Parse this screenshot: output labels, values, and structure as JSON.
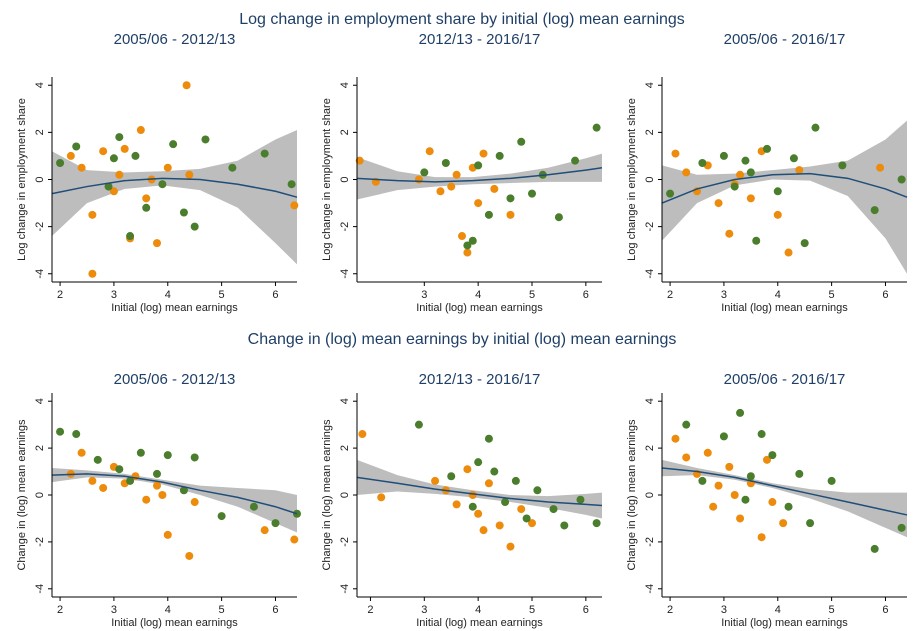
{
  "group_titles": [
    "Log change in employment share by initial (log) mean earnings",
    "Change in (log) mean earnings by initial (log) mean earnings"
  ],
  "chart_data": [
    {
      "type": "scatter",
      "title": "2005/06 - 2012/13",
      "xlabel": "Initial (log) mean earnings",
      "ylabel": "Log change in employment share",
      "xlim": [
        1.85,
        6.4
      ],
      "ylim": [
        -4.35,
        4.35
      ],
      "xticks": [
        2,
        3,
        4,
        5,
        6
      ],
      "yticks": [
        -4,
        -2,
        0,
        2,
        4
      ],
      "series": [
        {
          "color": "#ed8b0c",
          "x": [
            2.2,
            2.4,
            2.6,
            2.8,
            3.0,
            3.1,
            3.3,
            3.5,
            3.6,
            3.8,
            4.0,
            4.35,
            4.4,
            6.35,
            2.6,
            3.2,
            3.7
          ],
          "values": [
            1.0,
            0.5,
            -4.0,
            1.2,
            -0.5,
            0.2,
            -2.5,
            2.1,
            -0.8,
            -2.7,
            0.5,
            4.0,
            0.2,
            -1.1,
            -1.5,
            1.3,
            0.0
          ]
        },
        {
          "color": "#4a7d2c",
          "x": [
            2.0,
            2.3,
            2.9,
            3.1,
            3.3,
            3.4,
            3.6,
            3.9,
            4.1,
            4.3,
            4.7,
            5.2,
            5.8,
            6.3,
            3.0,
            4.5
          ],
          "values": [
            0.7,
            1.4,
            -0.3,
            1.8,
            -2.4,
            1.0,
            -1.2,
            -0.2,
            1.5,
            -1.4,
            1.7,
            0.5,
            1.1,
            -0.2,
            0.9,
            -2.0
          ]
        }
      ],
      "fit": {
        "color": "#1f4e79",
        "band_color": "#bdbdbd",
        "x": [
          1.85,
          2.5,
          3.2,
          3.9,
          4.6,
          5.3,
          6.0,
          6.4
        ],
        "values": [
          -0.6,
          -0.3,
          -0.05,
          0.05,
          0.0,
          -0.2,
          -0.5,
          -0.75
        ],
        "lower": [
          -2.4,
          -1.0,
          -0.4,
          -0.25,
          -0.45,
          -1.2,
          -2.7,
          -3.6
        ],
        "upper": [
          1.2,
          0.4,
          0.3,
          0.35,
          0.45,
          0.8,
          1.7,
          2.1
        ]
      }
    },
    {
      "type": "scatter",
      "title": "2012/13 - 2016/17",
      "xlabel": "Initial (log) mean earnings",
      "ylabel": "Log change in employment share",
      "xlim": [
        1.75,
        6.3
      ],
      "ylim": [
        -4.35,
        4.35
      ],
      "xticks": [
        3,
        4,
        5,
        6
      ],
      "yticks": [
        -4,
        -2,
        0,
        2,
        4
      ],
      "series": [
        {
          "color": "#ed8b0c",
          "x": [
            1.8,
            2.1,
            2.9,
            3.1,
            3.3,
            3.5,
            3.7,
            3.8,
            3.9,
            4.0,
            4.1,
            4.3,
            4.6,
            3.6
          ],
          "values": [
            0.8,
            -0.1,
            0.0,
            1.2,
            -0.5,
            -0.3,
            -2.4,
            -3.1,
            0.5,
            -1.0,
            1.1,
            -0.4,
            -1.5,
            0.2
          ]
        },
        {
          "color": "#4a7d2c",
          "x": [
            3.0,
            3.4,
            3.8,
            4.0,
            4.2,
            4.4,
            4.6,
            4.8,
            5.0,
            5.2,
            5.5,
            5.8,
            6.2,
            3.9
          ],
          "values": [
            0.3,
            0.7,
            -2.8,
            0.6,
            -1.5,
            1.0,
            -0.8,
            1.6,
            -0.6,
            0.2,
            -1.6,
            0.8,
            2.2,
            -2.6
          ]
        }
      ],
      "fit": {
        "color": "#1f4e79",
        "band_color": "#bdbdbd",
        "x": [
          1.75,
          2.5,
          3.2,
          3.9,
          4.6,
          5.3,
          6.0,
          6.3
        ],
        "values": [
          0.05,
          -0.05,
          -0.1,
          -0.05,
          0.05,
          0.2,
          0.4,
          0.5
        ],
        "lower": [
          -0.85,
          -0.45,
          -0.3,
          -0.2,
          -0.15,
          -0.1,
          -0.1,
          -0.1
        ],
        "upper": [
          0.95,
          0.35,
          0.1,
          0.1,
          0.25,
          0.5,
          0.9,
          1.1
        ]
      }
    },
    {
      "type": "scatter",
      "title": "2005/06 - 2016/17",
      "xlabel": "Initial (log) mean earnings",
      "ylabel": "Log change in employment share",
      "xlim": [
        1.85,
        6.4
      ],
      "ylim": [
        -4.35,
        4.35
      ],
      "xticks": [
        2,
        3,
        4,
        5,
        6
      ],
      "yticks": [
        -4,
        -2,
        0,
        2,
        4
      ],
      "series": [
        {
          "color": "#ed8b0c",
          "x": [
            2.1,
            2.3,
            2.5,
            2.7,
            2.9,
            3.1,
            3.3,
            3.5,
            3.7,
            4.0,
            4.2,
            4.4,
            5.9,
            3.2
          ],
          "values": [
            1.1,
            0.3,
            -0.5,
            0.6,
            -1.0,
            -2.3,
            0.2,
            -0.8,
            1.2,
            -1.5,
            -3.1,
            0.4,
            0.5,
            -0.2
          ]
        },
        {
          "color": "#4a7d2c",
          "x": [
            2.0,
            2.6,
            3.0,
            3.2,
            3.4,
            3.6,
            3.8,
            4.0,
            4.3,
            4.5,
            4.7,
            5.2,
            5.8,
            6.3,
            3.5
          ],
          "values": [
            -0.6,
            0.7,
            1.0,
            -0.3,
            0.8,
            -2.6,
            1.3,
            -0.5,
            0.9,
            -2.7,
            2.2,
            0.6,
            -1.3,
            0.0,
            0.3
          ]
        }
      ],
      "fit": {
        "color": "#1f4e79",
        "band_color": "#bdbdbd",
        "x": [
          1.85,
          2.5,
          3.2,
          3.9,
          4.6,
          5.3,
          6.0,
          6.4
        ],
        "values": [
          -1.0,
          -0.4,
          0.0,
          0.2,
          0.25,
          0.05,
          -0.4,
          -0.75
        ],
        "lower": [
          -2.6,
          -1.0,
          -0.25,
          0.0,
          -0.05,
          -0.7,
          -2.5,
          -4.0
        ],
        "upper": [
          0.6,
          0.2,
          0.25,
          0.4,
          0.55,
          0.8,
          1.7,
          2.5
        ]
      }
    },
    {
      "type": "scatter",
      "title": "2005/06 - 2012/13",
      "xlabel": "Initial (log) mean earnings",
      "ylabel": "Change in (log) mean earnings",
      "xlim": [
        1.85,
        6.4
      ],
      "ylim": [
        -4.35,
        4.35
      ],
      "xticks": [
        2,
        3,
        4,
        5,
        6
      ],
      "yticks": [
        -4,
        -2,
        0,
        2,
        4
      ],
      "series": [
        {
          "color": "#ed8b0c",
          "x": [
            2.2,
            2.4,
            2.6,
            2.8,
            3.0,
            3.2,
            3.4,
            3.6,
            3.8,
            4.0,
            4.4,
            4.5,
            5.8,
            6.35,
            3.9
          ],
          "values": [
            0.9,
            1.8,
            0.6,
            0.3,
            1.2,
            0.5,
            0.8,
            -0.2,
            0.4,
            -1.7,
            -2.6,
            -0.3,
            -1.5,
            -1.9,
            0.0
          ]
        },
        {
          "color": "#4a7d2c",
          "x": [
            2.0,
            2.3,
            2.7,
            3.1,
            3.5,
            3.8,
            4.0,
            4.3,
            4.5,
            5.0,
            5.6,
            6.0,
            6.4,
            3.3
          ],
          "values": [
            2.7,
            2.6,
            1.5,
            1.1,
            1.8,
            0.9,
            1.7,
            0.2,
            1.6,
            -0.9,
            -0.5,
            -1.2,
            -0.8,
            0.6
          ]
        }
      ],
      "fit": {
        "color": "#1f4e79",
        "band_color": "#bdbdbd",
        "x": [
          1.85,
          2.5,
          3.2,
          3.9,
          4.6,
          5.3,
          6.0,
          6.4
        ],
        "values": [
          0.85,
          0.9,
          0.8,
          0.55,
          0.2,
          -0.1,
          -0.5,
          -0.8
        ],
        "lower": [
          0.55,
          0.75,
          0.7,
          0.45,
          0.0,
          -0.5,
          -1.2,
          -1.6
        ],
        "upper": [
          1.15,
          1.05,
          0.9,
          0.65,
          0.4,
          0.3,
          0.2,
          0.0
        ]
      }
    },
    {
      "type": "scatter",
      "title": "2012/13 - 2016/17",
      "xlabel": "Initial (log) mean earnings",
      "ylabel": "Change in (log) mean earnings",
      "xlim": [
        1.75,
        6.3
      ],
      "ylim": [
        -4.35,
        4.35
      ],
      "xticks": [
        2,
        3,
        4,
        5,
        6
      ],
      "yticks": [
        -4,
        -2,
        0,
        2,
        4
      ],
      "series": [
        {
          "color": "#ed8b0c",
          "x": [
            1.85,
            2.2,
            3.2,
            3.4,
            3.6,
            3.8,
            3.9,
            4.0,
            4.2,
            4.4,
            4.6,
            4.8,
            5.0,
            4.1
          ],
          "values": [
            2.6,
            -0.1,
            0.6,
            0.2,
            -0.4,
            1.1,
            0.0,
            -0.8,
            0.5,
            -1.3,
            -2.2,
            -0.6,
            -1.2,
            -1.5
          ]
        },
        {
          "color": "#4a7d2c",
          "x": [
            2.9,
            3.5,
            3.9,
            4.2,
            4.3,
            4.5,
            4.7,
            4.9,
            5.1,
            5.4,
            5.6,
            5.9,
            6.2,
            4.0
          ],
          "values": [
            3.0,
            0.8,
            -0.5,
            2.4,
            1.0,
            -0.3,
            0.6,
            -1.0,
            0.2,
            -0.6,
            -1.3,
            -0.2,
            -1.2,
            1.4
          ]
        }
      ],
      "fit": {
        "color": "#1f4e79",
        "band_color": "#bdbdbd",
        "x": [
          1.75,
          2.5,
          3.2,
          3.9,
          4.6,
          5.3,
          6.0,
          6.3
        ],
        "values": [
          0.75,
          0.5,
          0.25,
          0.05,
          -0.15,
          -0.3,
          -0.4,
          -0.45
        ],
        "lower": [
          0.0,
          0.15,
          0.05,
          -0.1,
          -0.3,
          -0.55,
          -0.85,
          -1.0
        ],
        "upper": [
          1.5,
          0.85,
          0.45,
          0.2,
          0.0,
          -0.05,
          0.05,
          0.1
        ]
      }
    },
    {
      "type": "scatter",
      "title": "2005/06 - 2016/17",
      "xlabel": "Initial (log) mean earnings",
      "ylabel": "Change in (log) mean earnings",
      "xlim": [
        1.85,
        6.4
      ],
      "ylim": [
        -4.35,
        4.35
      ],
      "xticks": [
        2,
        3,
        4,
        5,
        6
      ],
      "yticks": [
        -4,
        -2,
        0,
        2,
        4
      ],
      "series": [
        {
          "color": "#ed8b0c",
          "x": [
            2.1,
            2.3,
            2.5,
            2.7,
            2.9,
            3.1,
            3.3,
            3.5,
            3.7,
            3.9,
            4.1,
            3.8,
            2.8,
            3.2
          ],
          "values": [
            2.4,
            1.6,
            0.9,
            1.8,
            0.4,
            1.2,
            -1.0,
            0.5,
            -1.8,
            -0.3,
            -1.2,
            1.5,
            -0.5,
            0.0
          ]
        },
        {
          "color": "#4a7d2c",
          "x": [
            2.3,
            2.6,
            3.0,
            3.3,
            3.5,
            3.7,
            3.9,
            4.2,
            4.4,
            4.6,
            5.0,
            5.8,
            6.3,
            3.4
          ],
          "values": [
            3.0,
            0.6,
            2.5,
            3.5,
            0.8,
            2.6,
            1.7,
            -0.5,
            0.9,
            -1.2,
            0.6,
            -2.3,
            -1.4,
            -0.2
          ]
        }
      ],
      "fit": {
        "color": "#1f4e79",
        "band_color": "#bdbdbd",
        "x": [
          1.85,
          2.5,
          3.2,
          3.9,
          4.6,
          5.3,
          6.0,
          6.4
        ],
        "values": [
          1.15,
          1.0,
          0.75,
          0.4,
          0.05,
          -0.3,
          -0.65,
          -0.85
        ],
        "lower": [
          0.8,
          0.85,
          0.65,
          0.3,
          -0.15,
          -0.7,
          -1.4,
          -1.8
        ],
        "upper": [
          1.5,
          1.15,
          0.85,
          0.5,
          0.25,
          0.1,
          0.1,
          0.1
        ]
      }
    }
  ]
}
